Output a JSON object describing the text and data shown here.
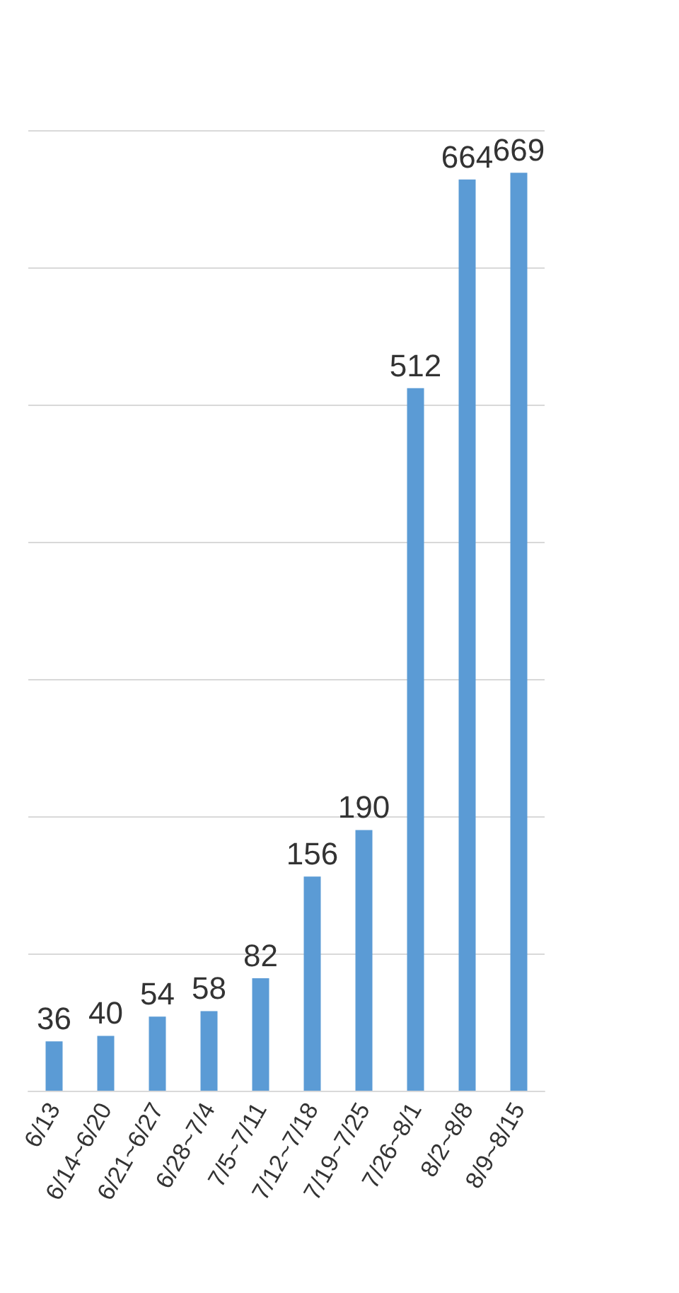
{
  "chart_data": {
    "type": "bar",
    "categories": [
      "6/13",
      "6/14~6/20",
      "6/21~6/27",
      "6/28~7/4",
      "7/5~7/11",
      "7/12~7/18",
      "7/19~7/25",
      "7/26~8/1",
      "8/2~8/8",
      "8/9~8/15"
    ],
    "values": [
      36,
      40,
      54,
      58,
      82,
      156,
      190,
      512,
      664,
      669
    ],
    "color": "#5b9bd5",
    "data_labels": true,
    "ylim": [
      0,
      700
    ],
    "yticks": [
      {
        "value": 0,
        "label": null
      },
      {
        "value": 100,
        "label": null
      },
      {
        "value": 200,
        "label": null
      },
      {
        "value": 300,
        "label": null
      },
      {
        "value": 400,
        "label": null
      },
      {
        "value": 500,
        "label": null
      },
      {
        "value": 600,
        "label": null
      },
      {
        "value": 700,
        "label": null
      }
    ],
    "grid": "y",
    "tick_labels": "x"
  }
}
